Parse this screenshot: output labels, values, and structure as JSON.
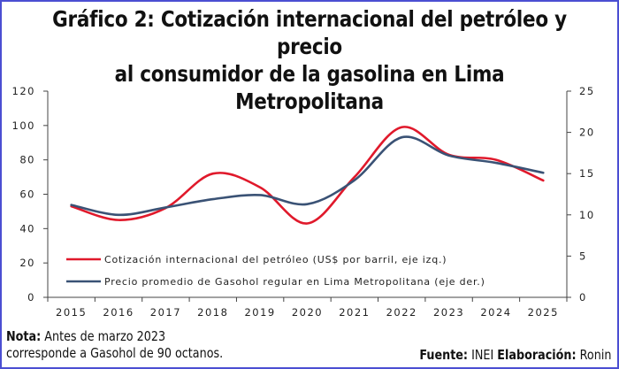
{
  "title_line1": "Gráfico 2: Cotización internacional del petróleo y precio",
  "title_line2": "al consumidor de la gasolina en Lima Metropolitana",
  "chart_data": {
    "type": "line",
    "title": "Gráfico 2: Cotización internacional del petróleo y precio al consumidor de la gasolina en Lima Metropolitana",
    "categories": [
      "2015",
      "2016",
      "2017",
      "2018",
      "2019",
      "2020",
      "2021",
      "2022",
      "2023",
      "2024",
      "2025"
    ],
    "y_left": {
      "ylim": [
        0,
        120
      ],
      "ticks": [
        "0",
        "20",
        "40",
        "60",
        "80",
        "100",
        "120"
      ]
    },
    "y_right": {
      "ylim": [
        0,
        25
      ],
      "ticks": [
        "0",
        "5",
        "10",
        "15",
        "20",
        "25"
      ]
    },
    "series": [
      {
        "name": "Cotización internacional del petróleo (US$ por barril, eje izq.)",
        "axis": "left",
        "color": "#e0192b",
        "values": [
          53,
          45,
          52,
          72,
          64,
          43,
          70,
          99,
          83,
          80,
          68
        ]
      },
      {
        "name": "Precio promedio de Gasohol regular en Lima Metropolitana (eje der.)",
        "axis": "right",
        "color": "#3a5275",
        "values": [
          11.2,
          10.0,
          10.9,
          11.9,
          12.4,
          11.3,
          14.2,
          19.4,
          17.2,
          16.3,
          15.1
        ]
      }
    ],
    "legend": "bottom-left inside",
    "grid": false
  },
  "note_label": "Nota:",
  "note_line1": " Antes de marzo 2023",
  "note_line2": "corresponde a Gasohol de 90 octanos.",
  "source_label": "Fuente:",
  "source_value": " INEI ",
  "elab_label": "Elaboración:",
  "elab_value": " Ronin"
}
